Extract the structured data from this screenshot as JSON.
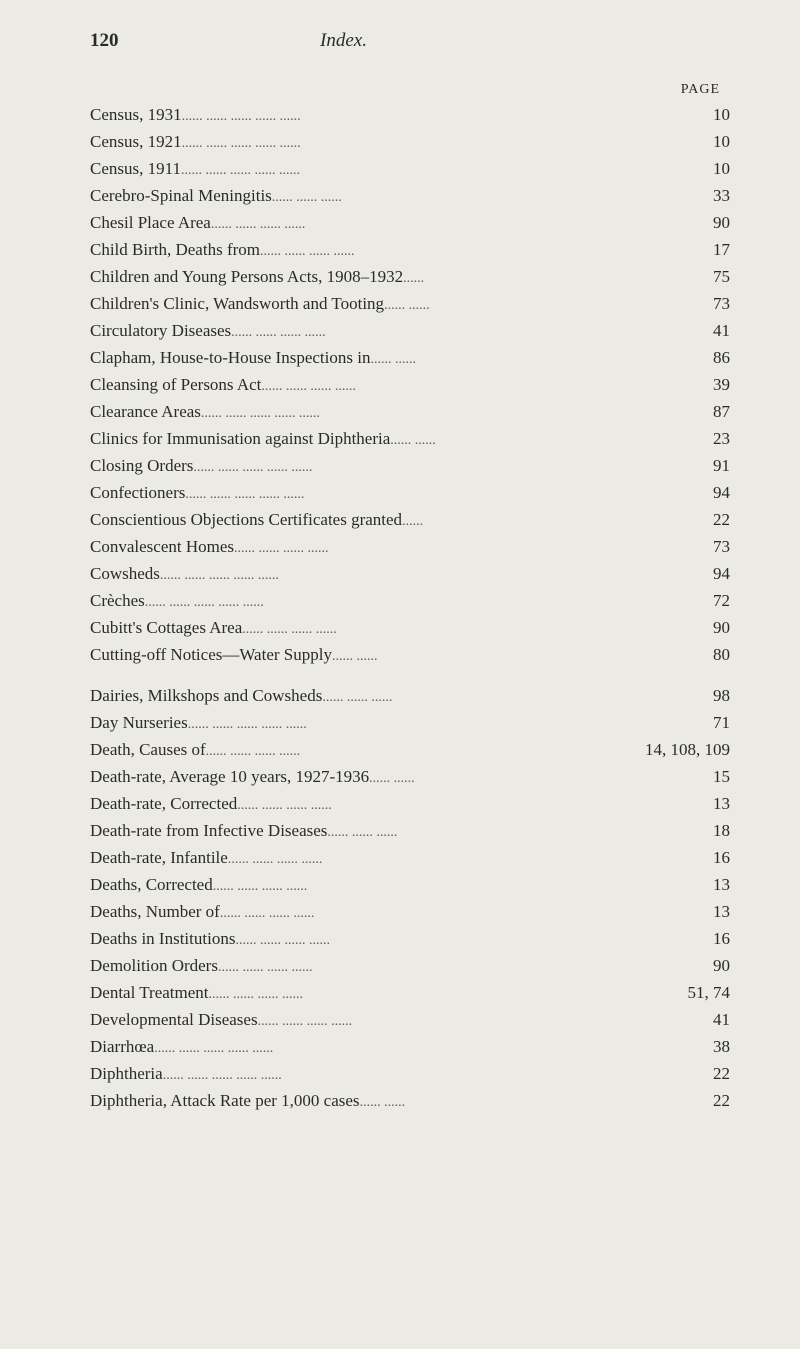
{
  "header": {
    "page_number": "120",
    "title": "Index."
  },
  "column_header": "PAGE",
  "entries": [
    {
      "label": "Census, 1931",
      "dots": "......            ......            ......            ......            ......",
      "page": "10"
    },
    {
      "label": "Census, 1921",
      "dots": "......            ......            ......            ......            ......",
      "page": "10"
    },
    {
      "label": "Census, 1911",
      "dots": "......            ......            ......            ......            ......",
      "page": "10"
    },
    {
      "label": "Cerebro-Spinal Meningitis",
      "dots": "            ......            ......            ......",
      "page": "33"
    },
    {
      "label": "Chesil Place Area",
      "dots": "            ......            ......            ......            ......",
      "page": "90"
    },
    {
      "label": "Child Birth, Deaths from",
      "dots": "......            ......            ......            ......",
      "page": "17"
    },
    {
      "label": "Children and Young Persons Acts, 1908–1932",
      "dots": "            ......",
      "page": "75"
    },
    {
      "label": "Children's Clinic, Wandsworth and Tooting",
      "dots": "......            ......",
      "page": "73"
    },
    {
      "label": "Circulatory Diseases",
      "dots": "            ......            ......            ......            ......",
      "page": "41"
    },
    {
      "label": "Clapham, House-to-House Inspections in",
      "dots": "......            ......",
      "page": "86"
    },
    {
      "label": "Cleansing of Persons Act",
      "dots": "......            ......            ......            ......",
      "page": "39"
    },
    {
      "label": "Clearance Areas",
      "dots": "......            ......            ......            ......            ......",
      "page": "87"
    },
    {
      "label": "Clinics for Immunisation against Diphtheria",
      "dots": "......            ......",
      "page": "23"
    },
    {
      "label": "Closing Orders",
      "dots": "......            ......            ......            ......            ......",
      "page": "91"
    },
    {
      "label": "Confectioners",
      "dots": "......            ......            ......            ......            ......",
      "page": "94"
    },
    {
      "label": "Conscientious Objections Certificates granted",
      "dots": "            ......",
      "page": "22"
    },
    {
      "label": "Convalescent Homes",
      "dots": "            ......            ......            ......            ......",
      "page": "73"
    },
    {
      "label": "Cowsheds",
      "dots": "            ......            ......            ......            ......            ......",
      "page": "94"
    },
    {
      "label": "Crèches",
      "dots": "            ......            ......            ......            ......            ......",
      "page": "72"
    },
    {
      "label": "Cubitt's Cottages Area",
      "dots": "......            ......            ......            ......",
      "page": "90"
    },
    {
      "label": "Cutting-off Notices—Water Supply",
      "dots": "            ......            ......",
      "page": "80"
    },
    {
      "gap": true
    },
    {
      "label": "Dairies, Milkshops and Cowsheds",
      "dots": "......            ......            ......",
      "page": "98"
    },
    {
      "label": "Day Nurseries",
      "dots": "......            ......            ......            ......            ......",
      "page": "71"
    },
    {
      "label": "Death, Causes of",
      "dots": "......            ......            ......            ......",
      "page": "14, 108, 109"
    },
    {
      "label": "Death-rate, Average 10 years, 1927-1936",
      "dots": "......            ......",
      "page": "15"
    },
    {
      "label": "Death-rate, Corrected",
      "dots": "            ......            ......            ......            ......",
      "page": "13"
    },
    {
      "label": "Death-rate from Infective Diseases",
      "dots": "......            ......            ......",
      "page": "18"
    },
    {
      "label": "Death-rate, Infantile",
      "dots": "            ......            ......            ......            ......",
      "page": "16"
    },
    {
      "label": "Deaths, Corrected",
      "dots": "            ......            ......            ......            ......",
      "page": "13"
    },
    {
      "label": "Deaths, Number of",
      "dots": "            ......            ......            ......            ......",
      "page": "13"
    },
    {
      "label": "Deaths in Institutions",
      "dots": "......            ......            ......            ......",
      "page": "16"
    },
    {
      "label": "Demolition Orders",
      "dots": "            ......            ......            ......            ......",
      "page": "90"
    },
    {
      "label": "Dental Treatment",
      "dots": "            ......            ......            ......            ......",
      "page": "51, 74"
    },
    {
      "label": "Developmental Diseases",
      "dots": "......            ......            ......            ......",
      "page": "41"
    },
    {
      "label": "Diarrhœa",
      "dots": "            ......            ......            ......            ......            ......",
      "page": "38"
    },
    {
      "label": "Diphtheria",
      "dots": "            ......            ......            ......            ......            ......",
      "page": "22"
    },
    {
      "label": "Diphtheria, Attack Rate per 1,000 cases",
      "dots": "......            ......",
      "page": "22"
    }
  ],
  "styling": {
    "background_color": "#ebebe3",
    "text_color": "#2a2a2a",
    "font_family": "Georgia, Times New Roman, serif",
    "body_font_size": 17,
    "header_font_size": 19,
    "page_label_font_size": 14
  }
}
